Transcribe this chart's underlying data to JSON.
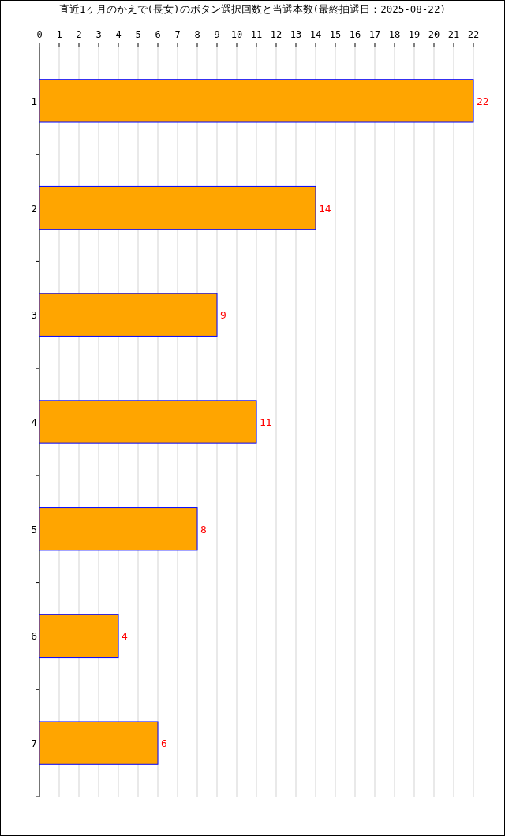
{
  "chart_data": {
    "type": "bar",
    "title": "直近1ヶ月のかえで(長女)のボタン選択回数と当選本数(最終抽選日：2025-08-22)",
    "orientation": "horizontal",
    "categories": [
      "1",
      "2",
      "3",
      "4",
      "5",
      "6",
      "7"
    ],
    "values": [
      22,
      14,
      9,
      11,
      8,
      4,
      6
    ],
    "color": "#ffa500",
    "xlim": [
      0,
      22
    ],
    "xticks": [
      0,
      1,
      2,
      3,
      4,
      5,
      6,
      7,
      8,
      9,
      10,
      11,
      12,
      13,
      14,
      15,
      16,
      17,
      18,
      19,
      20,
      21,
      22
    ],
    "grid": "x",
    "data_labels": true
  }
}
